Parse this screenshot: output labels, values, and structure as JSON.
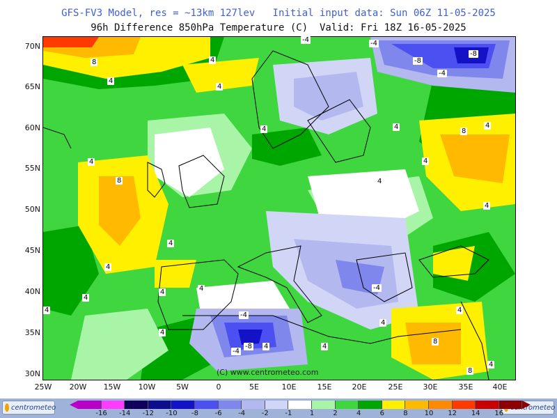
{
  "header": {
    "line1": "GFS-FV3 Model, res = ~13km 127lev   Initial input data: Sun 06Z 11-05-2025",
    "line2": "96h Difference 850hPa Temperature (C)  Valid: Fri 18Z 16-05-2025"
  },
  "axes": {
    "latitudes": [
      "70N",
      "65N",
      "60N",
      "55N",
      "50N",
      "45N",
      "40N",
      "35N",
      "30N"
    ],
    "longitudes": [
      "25W",
      "20W",
      "15W",
      "10W",
      "5W",
      "0",
      "5E",
      "10E",
      "15E",
      "20E",
      "25E",
      "30E",
      "35E",
      "40E"
    ]
  },
  "contour_labels": [
    "4",
    "8",
    "4",
    "4",
    "4",
    "4",
    "4",
    "-4",
    "-8",
    "-8",
    "-4",
    "4",
    "4",
    "8",
    "4",
    "4",
    "4",
    "8",
    "4",
    "4",
    "4",
    "4",
    "-4",
    "-4",
    "4",
    "4",
    "-4",
    "-8",
    "-4",
    "4",
    "8",
    "8",
    "4",
    "4",
    "4",
    "4"
  ],
  "copyright": "(C) www.centrometeo.com",
  "logos": {
    "left": "centrometeo",
    "right": "centrometeo"
  },
  "legend": {
    "ticks": [
      "-16",
      "-14",
      "-12",
      "-10",
      "-8",
      "-6",
      "-4",
      "-2",
      "-1",
      "1",
      "2",
      "4",
      "6",
      "8",
      "10",
      "12",
      "14",
      "16"
    ],
    "colors": [
      "#ba00c8",
      "#ff3cff",
      "#10005a",
      "#0d0c8c",
      "#1412c7",
      "#4c50f0",
      "#7f86ec",
      "#b3b8ef",
      "#d2d6f6",
      "#ffffff",
      "#a8f5a8",
      "#3fd63f",
      "#00a600",
      "#fff000",
      "#ffba00",
      "#ff8a00",
      "#ff3a00",
      "#c80000",
      "#8c0000"
    ]
  }
}
